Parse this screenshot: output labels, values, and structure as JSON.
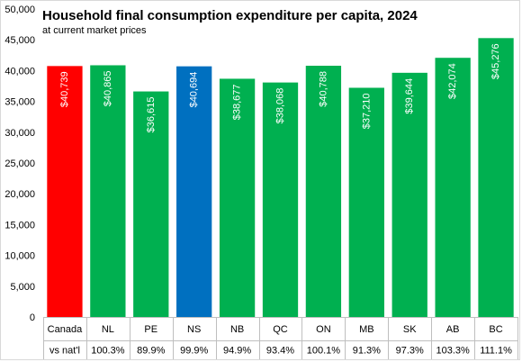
{
  "chart_data": {
    "type": "bar",
    "title": "Household final consumption expenditure per capita, 2024",
    "subtitle": "at current market prices",
    "categories": [
      "Canada",
      "NL",
      "PE",
      "NS",
      "NB",
      "QC",
      "ON",
      "MB",
      "SK",
      "AB",
      "BC"
    ],
    "values": [
      40739,
      40865,
      36615,
      40694,
      38677,
      38068,
      40788,
      37210,
      39644,
      42074,
      45276
    ],
    "value_labels": [
      "$40,739",
      "$40,865",
      "$36,615",
      "$40,694",
      "$38,677",
      "$38,068",
      "$40,788",
      "$37,210",
      "$39,644",
      "$42,074",
      "$45,276"
    ],
    "bar_colors": [
      "#ff0000",
      "#00b050",
      "#00b050",
      "#0070c0",
      "#00b050",
      "#00b050",
      "#00b050",
      "#00b050",
      "#00b050",
      "#00b050",
      "#00b050"
    ],
    "row_label": "vs nat'l",
    "vs_national": [
      "100.3%",
      "89.9%",
      "99.9%",
      "94.9%",
      "93.4%",
      "100.1%",
      "91.3%",
      "97.3%",
      "103.3%",
      "111.1%"
    ],
    "y_ticks": [
      "0",
      "5,000",
      "10,000",
      "15,000",
      "20,000",
      "25,000",
      "30,000",
      "35,000",
      "40,000",
      "45,000",
      "50,000"
    ],
    "ylim": [
      0,
      50000
    ],
    "grid": false,
    "legend": "none"
  }
}
